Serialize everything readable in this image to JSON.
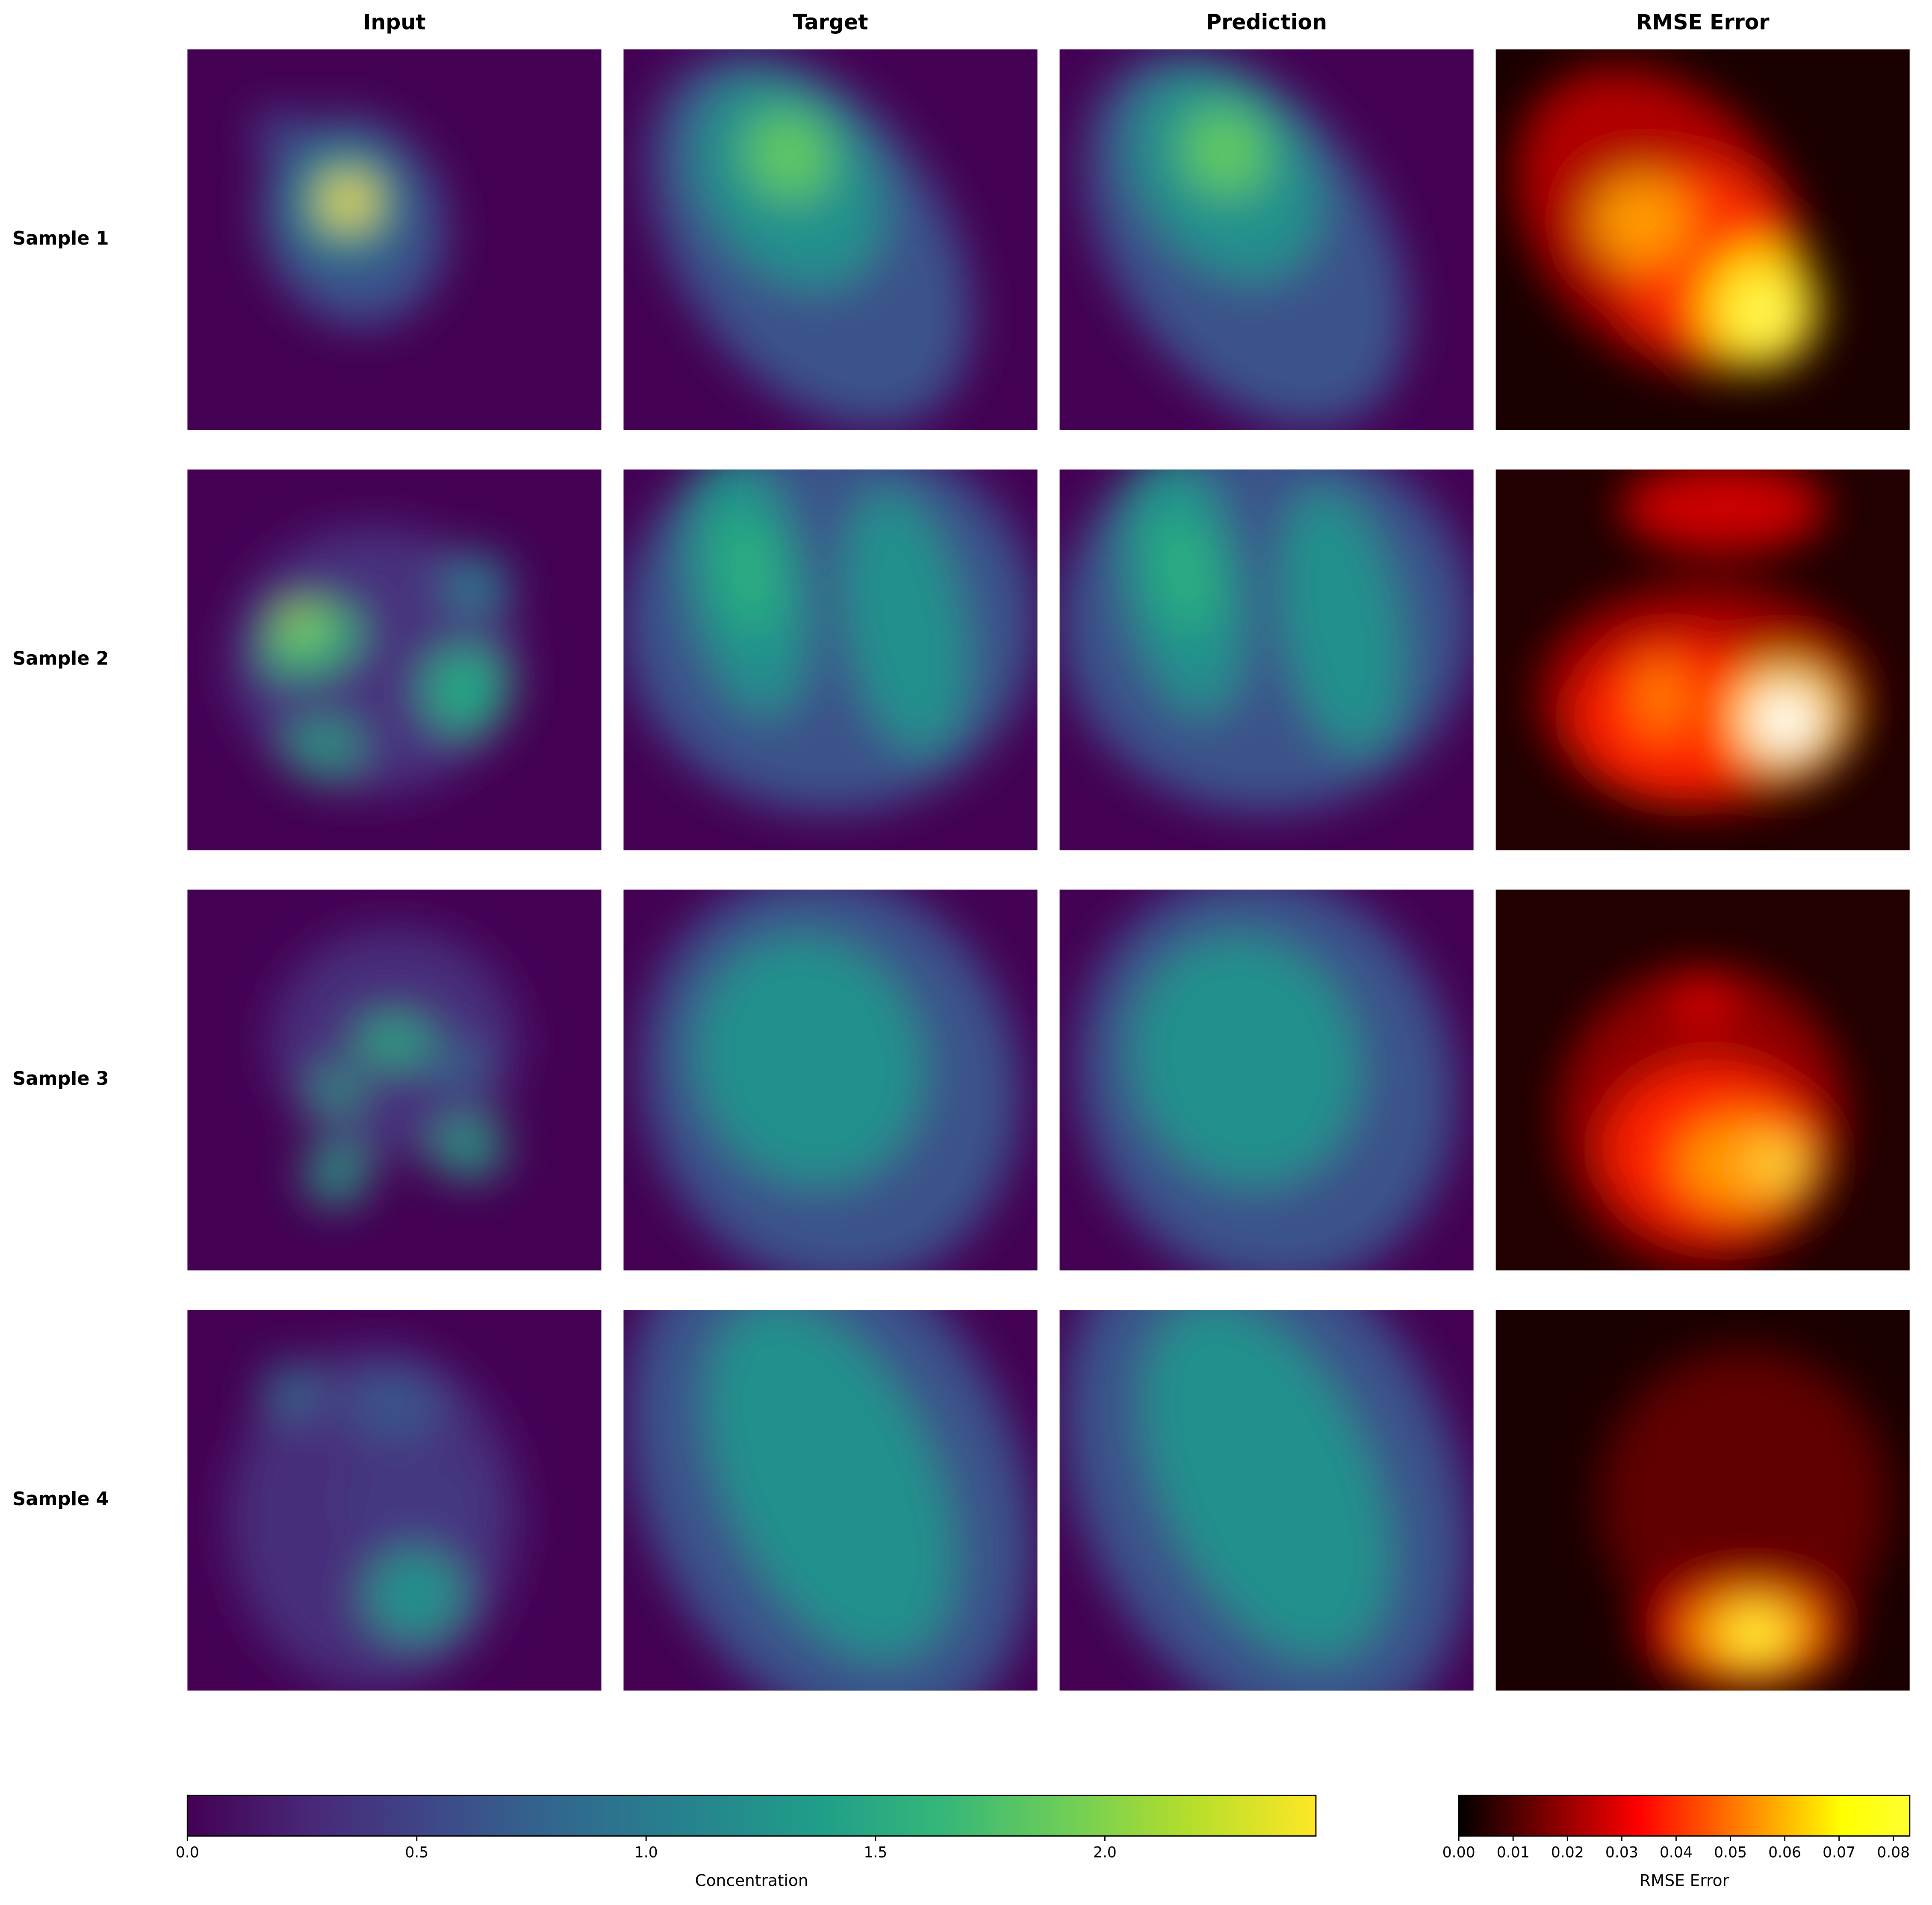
{
  "chart_data": {
    "type": "heatmap",
    "columns": [
      "Input",
      "Target",
      "Prediction",
      "RMSE Error"
    ],
    "rows": [
      "Sample 1",
      "Sample 2",
      "Sample 3",
      "Sample 4"
    ],
    "colorbars": [
      {
        "label": "Concentration",
        "cmap": "viridis",
        "clim": [
          0,
          2.46
        ],
        "ticks": [
          {
            "value": 0,
            "label": "0.0"
          },
          0.5,
          {
            "value": 1,
            "label": "1.0"
          },
          1.5,
          {
            "value": 2,
            "label": "2.0"
          }
        ]
      },
      {
        "label": "RMSE Error",
        "cmap": "hot",
        "clim": [
          0,
          0.083
        ],
        "ticks": [
          {
            "value": 0,
            "label": "0.00"
          },
          {
            "value": 0.01,
            "label": "0.01"
          },
          {
            "value": 0.02,
            "label": "0.02"
          },
          {
            "value": 0.03,
            "label": "0.03"
          },
          {
            "value": 0.04,
            "label": "0.04"
          },
          {
            "value": 0.05,
            "label": "0.05"
          },
          {
            "value": 0.06,
            "label": "0.06"
          },
          {
            "value": 0.07,
            "label": "0.07"
          },
          {
            "value": 0.08,
            "label": "0.08"
          }
        ]
      }
    ]
  }
}
